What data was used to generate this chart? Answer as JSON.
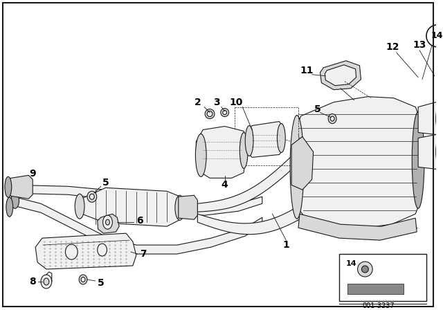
{
  "bg_color": "#ffffff",
  "border_color": "#000000",
  "text_color": "#000000",
  "diagram_code": "001-3237",
  "ec": "#1a1a1a",
  "fc_light": "#f0f0f0",
  "fc_mid": "#d8d8d8",
  "fc_dark": "#b0b0b0",
  "fc_darkest": "#888888",
  "lw": 0.8
}
